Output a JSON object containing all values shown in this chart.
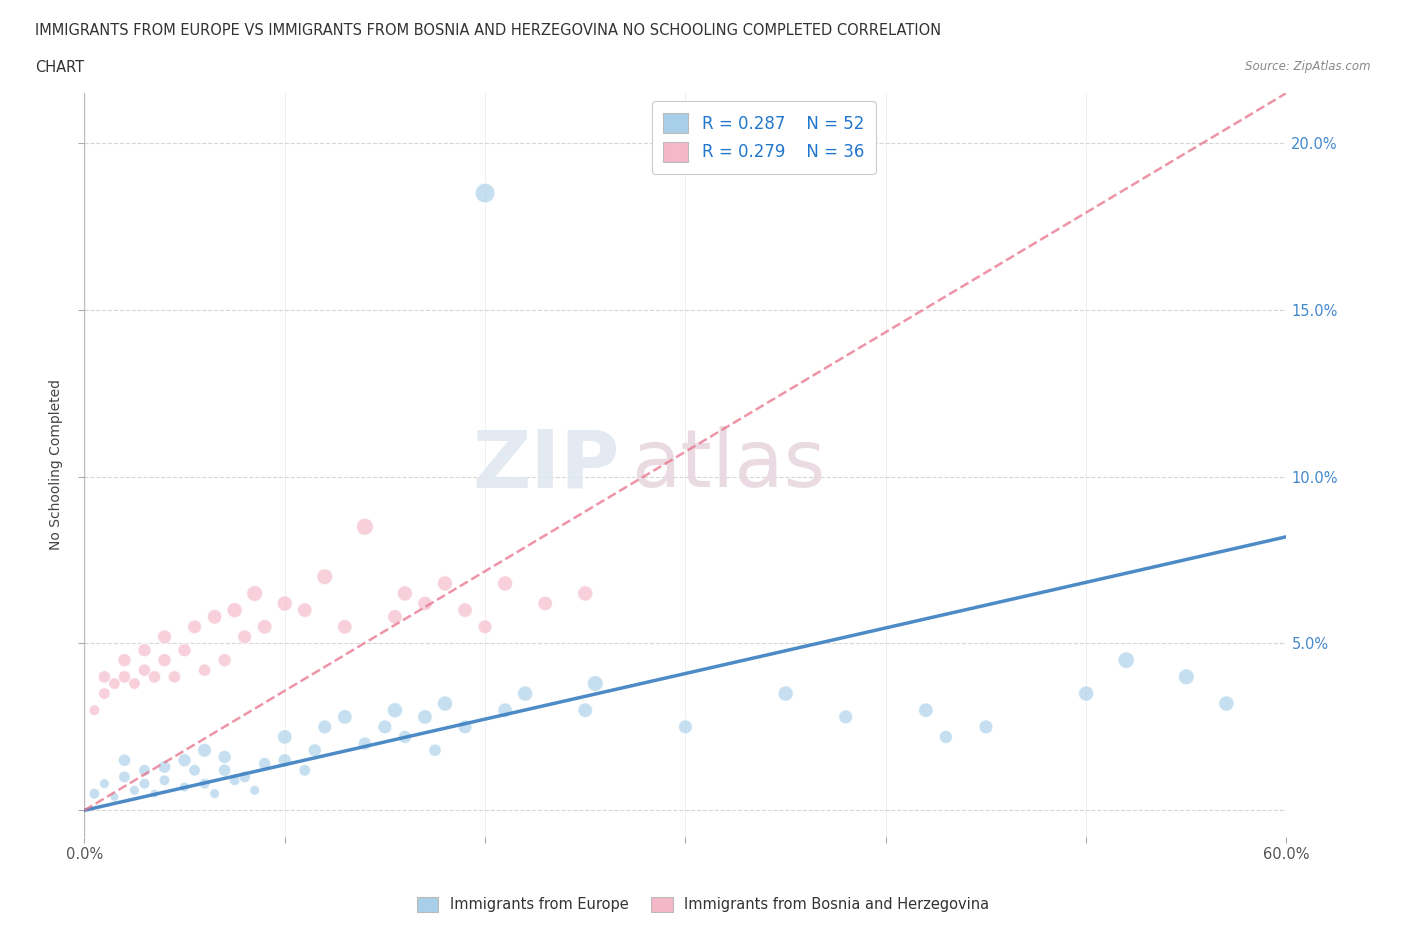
{
  "title_line1": "IMMIGRANTS FROM EUROPE VS IMMIGRANTS FROM BOSNIA AND HERZEGOVINA NO SCHOOLING COMPLETED CORRELATION",
  "title_line2": "CHART",
  "source_text": "Source: ZipAtlas.com",
  "ylabel": "No Schooling Completed",
  "xmin": 0.0,
  "xmax": 0.6,
  "ymin": -0.008,
  "ymax": 0.215,
  "x_ticks": [
    0.0,
    0.1,
    0.2,
    0.3,
    0.4,
    0.5,
    0.6
  ],
  "x_tick_labels": [
    "0.0%",
    "",
    "",
    "",
    "",
    "",
    "60.0%"
  ],
  "y_ticks": [
    0.0,
    0.05,
    0.1,
    0.15,
    0.2
  ],
  "y_tick_labels_right": [
    "",
    "5.0%",
    "10.0%",
    "15.0%",
    "20.0%"
  ],
  "blue_color": "#a8cfe8",
  "pink_color": "#f4b8c8",
  "blue_line_color": "#3a7fc1",
  "pink_line_color": "#e8718a",
  "legend_R_blue": "R = 0.287",
  "legend_N_blue": "N = 52",
  "legend_R_pink": "R = 0.279",
  "legend_N_pink": "N = 36",
  "watermark_zip": "ZIP",
  "watermark_atlas": "atlas",
  "blue_scatter_x": [
    0.005,
    0.01,
    0.015,
    0.02,
    0.02,
    0.025,
    0.03,
    0.03,
    0.035,
    0.04,
    0.04,
    0.05,
    0.05,
    0.055,
    0.06,
    0.06,
    0.065,
    0.07,
    0.07,
    0.075,
    0.08,
    0.085,
    0.09,
    0.1,
    0.1,
    0.11,
    0.115,
    0.12,
    0.13,
    0.14,
    0.15,
    0.155,
    0.16,
    0.17,
    0.175,
    0.18,
    0.19,
    0.2,
    0.21,
    0.22,
    0.25,
    0.255,
    0.3,
    0.35,
    0.38,
    0.42,
    0.43,
    0.45,
    0.5,
    0.52,
    0.55,
    0.57
  ],
  "blue_scatter_y": [
    0.005,
    0.008,
    0.004,
    0.01,
    0.015,
    0.006,
    0.008,
    0.012,
    0.005,
    0.009,
    0.013,
    0.007,
    0.015,
    0.012,
    0.008,
    0.018,
    0.005,
    0.012,
    0.016,
    0.009,
    0.01,
    0.006,
    0.014,
    0.015,
    0.022,
    0.012,
    0.018,
    0.025,
    0.028,
    0.02,
    0.025,
    0.03,
    0.022,
    0.028,
    0.018,
    0.032,
    0.025,
    0.185,
    0.03,
    0.035,
    0.03,
    0.038,
    0.025,
    0.035,
    0.028,
    0.03,
    0.022,
    0.025,
    0.035,
    0.045,
    0.04,
    0.032
  ],
  "blue_scatter_sizes": [
    60,
    50,
    40,
    70,
    80,
    50,
    60,
    70,
    40,
    60,
    80,
    50,
    90,
    70,
    60,
    100,
    50,
    80,
    90,
    60,
    70,
    50,
    80,
    90,
    110,
    70,
    90,
    100,
    110,
    90,
    100,
    120,
    90,
    110,
    80,
    120,
    100,
    200,
    110,
    120,
    110,
    130,
    100,
    120,
    100,
    110,
    90,
    100,
    120,
    140,
    130,
    120
  ],
  "pink_scatter_x": [
    0.005,
    0.01,
    0.01,
    0.015,
    0.02,
    0.02,
    0.025,
    0.03,
    0.03,
    0.035,
    0.04,
    0.04,
    0.045,
    0.05,
    0.055,
    0.06,
    0.065,
    0.07,
    0.075,
    0.08,
    0.085,
    0.09,
    0.1,
    0.11,
    0.12,
    0.13,
    0.14,
    0.155,
    0.16,
    0.17,
    0.18,
    0.19,
    0.2,
    0.21,
    0.23,
    0.25
  ],
  "pink_scatter_y": [
    0.03,
    0.035,
    0.04,
    0.038,
    0.04,
    0.045,
    0.038,
    0.042,
    0.048,
    0.04,
    0.045,
    0.052,
    0.04,
    0.048,
    0.055,
    0.042,
    0.058,
    0.045,
    0.06,
    0.052,
    0.065,
    0.055,
    0.062,
    0.06,
    0.07,
    0.055,
    0.085,
    0.058,
    0.065,
    0.062,
    0.068,
    0.06,
    0.055,
    0.068,
    0.062,
    0.065
  ],
  "pink_scatter_sizes": [
    60,
    70,
    80,
    70,
    80,
    90,
    70,
    80,
    90,
    80,
    90,
    100,
    80,
    90,
    100,
    80,
    110,
    90,
    120,
    100,
    130,
    110,
    120,
    110,
    130,
    110,
    150,
    110,
    120,
    110,
    120,
    110,
    100,
    120,
    110,
    120
  ],
  "blue_line_x0": 0.0,
  "blue_line_y0": 0.0,
  "blue_line_x1": 0.6,
  "blue_line_y1": 0.082,
  "pink_line_x0": 0.0,
  "pink_line_y0": 0.0,
  "pink_line_x1": 0.6,
  "pink_line_y1": 0.215
}
